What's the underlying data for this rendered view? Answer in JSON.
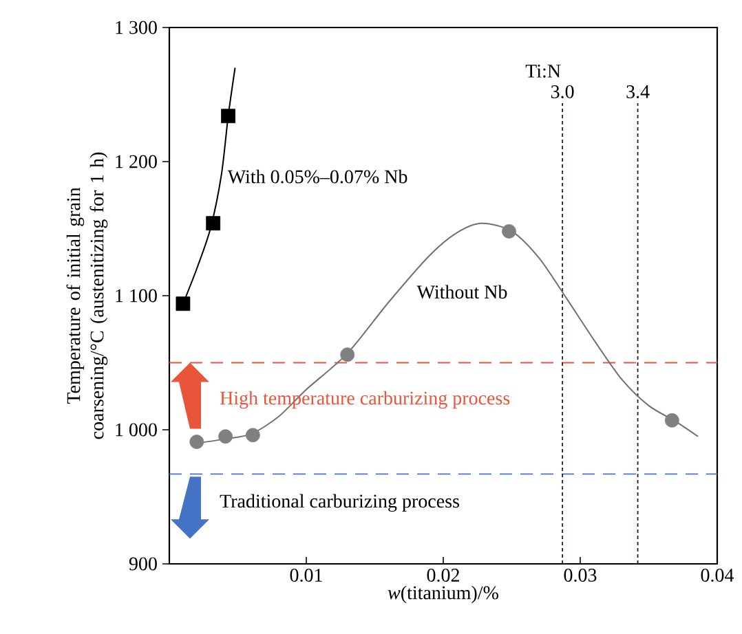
{
  "chart_data": {
    "type": "scatter",
    "xlabel": "*w*(titanium)/%",
    "ylabel": "Temperature of initial grain coarsening/°C (austenitizing for 1 h)",
    "xlim": [
      0,
      0.04
    ],
    "ylim": [
      900,
      1300
    ],
    "xticks": [
      0.01,
      0.02,
      0.03,
      0.04
    ],
    "yticks": [
      900,
      {
        "value": 1000,
        "label": "1 000"
      },
      {
        "value": 1100,
        "label": "1 100"
      },
      {
        "value": 1200,
        "label": "1 200"
      },
      {
        "value": 1300,
        "label": "1 300"
      }
    ],
    "grid": false,
    "series": [
      {
        "name": "With 0.05%–0.07% Nb",
        "marker": "square",
        "color": "#000000",
        "x": [
          0.001,
          0.0032,
          0.0043
        ],
        "values": [
          1094,
          1154,
          1234
        ]
      },
      {
        "type": "line",
        "marker": "none",
        "color": "#000000",
        "x": [
          0.001,
          0.002,
          0.003,
          0.0038,
          0.0043,
          0.0048
        ],
        "values": [
          1094,
          1120,
          1150,
          1190,
          1234,
          1270
        ]
      },
      {
        "name": "Without Nb",
        "marker": "circle",
        "color": "#808080",
        "x": [
          0.002,
          0.0041,
          0.0061,
          0.013,
          0.0248,
          0.0367
        ],
        "values": [
          991,
          995,
          996,
          1056,
          1148,
          1007
        ]
      },
      {
        "type": "line",
        "marker": "none",
        "color": "#707070",
        "x": [
          0.002,
          0.004,
          0.006,
          0.008,
          0.01,
          0.013,
          0.016,
          0.019,
          0.021,
          0.0228,
          0.025,
          0.027,
          0.029,
          0.031,
          0.033,
          0.035,
          0.037,
          0.0386
        ],
        "values": [
          990,
          993,
          997,
          1010,
          1030,
          1057,
          1095,
          1130,
          1147,
          1154,
          1148,
          1128,
          1098,
          1067,
          1038,
          1018,
          1006,
          995
        ]
      }
    ],
    "ref_lines": [
      {
        "axis": "y",
        "value": 1050,
        "color": "#e8553a",
        "line_style": "dashed"
      },
      {
        "axis": "y",
        "value": 967,
        "color": "#4472c4",
        "line_style": "dashed"
      },
      {
        "axis": "x",
        "value": 0.0287,
        "color": "#2b1d1d",
        "line_style": "dotted"
      },
      {
        "axis": "x",
        "value": 0.0342,
        "color": "#2b1d1d",
        "line_style": "dotted"
      }
    ],
    "annotations": [
      "Ti:N",
      "High temperature carburizing process",
      "Traditional carburizing process",
      "3.0",
      "3.4"
    ]
  }
}
